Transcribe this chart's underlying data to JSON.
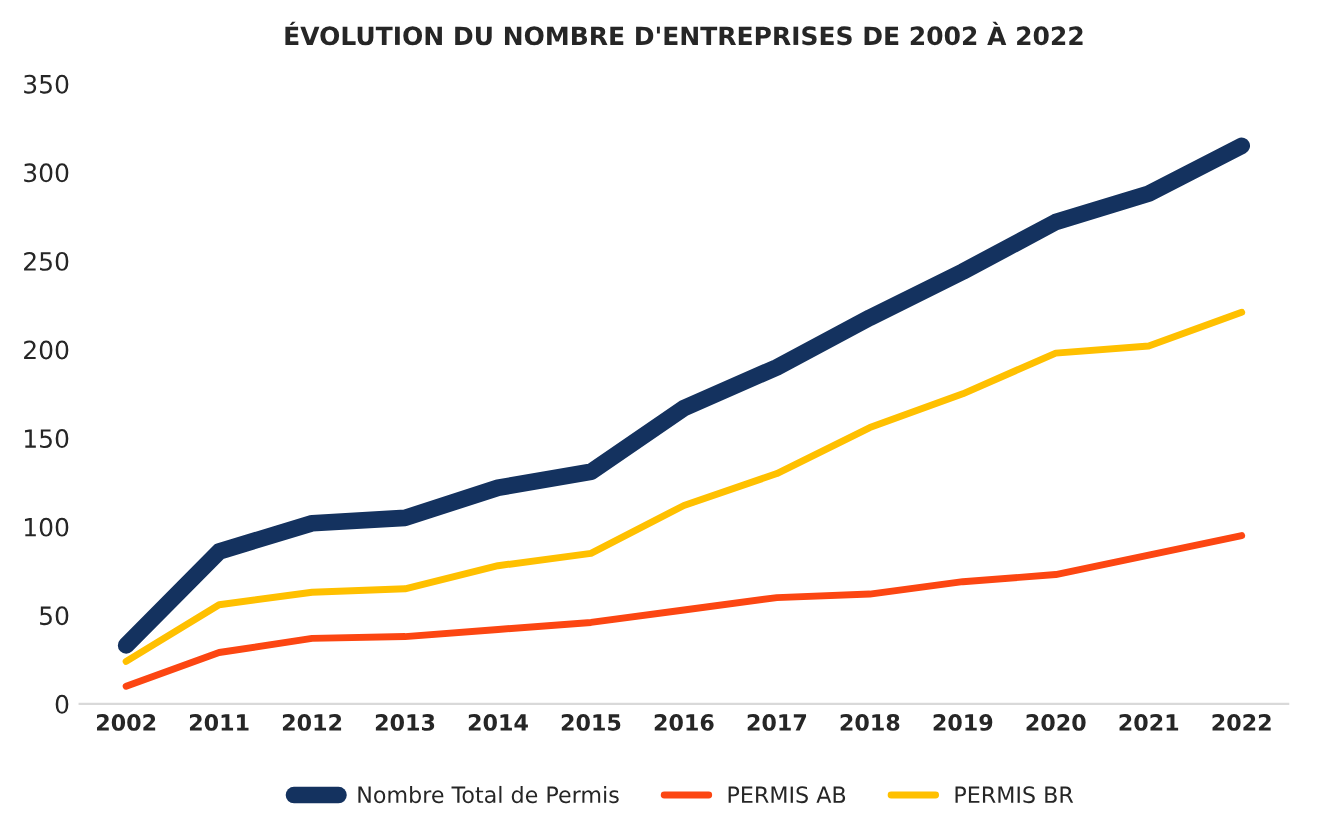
{
  "chart_data": {
    "type": "line",
    "title": "ÉVOLUTION DU NOMBRE D'ENTREPRISES DE 2002 À 2022",
    "categories": [
      "2002",
      "2011",
      "2012",
      "2013",
      "2014",
      "2015",
      "2016",
      "2017",
      "2018",
      "2019",
      "2020",
      "2021",
      "2022"
    ],
    "series": [
      {
        "name": "Nombre Total de Permis",
        "color": "#14325f",
        "values": [
          33,
          86,
          102,
          105,
          122,
          131,
          167,
          190,
          218,
          244,
          272,
          288,
          315
        ]
      },
      {
        "name": "PERMIS AB",
        "color": "#fc4612",
        "values": [
          10,
          29,
          37,
          38,
          42,
          46,
          53,
          60,
          62,
          69,
          73,
          84,
          95
        ]
      },
      {
        "name": "PERMIS BR",
        "color": "#ffc000",
        "values": [
          24,
          56,
          63,
          65,
          78,
          85,
          112,
          130,
          156,
          175,
          198,
          202,
          221
        ]
      }
    ],
    "ylim": [
      0,
      350
    ],
    "yticks": [
      0,
      50,
      100,
      150,
      200,
      250,
      300,
      350
    ],
    "grid": false,
    "legend": "bottom",
    "marker": "none",
    "line_style": "solid"
  }
}
